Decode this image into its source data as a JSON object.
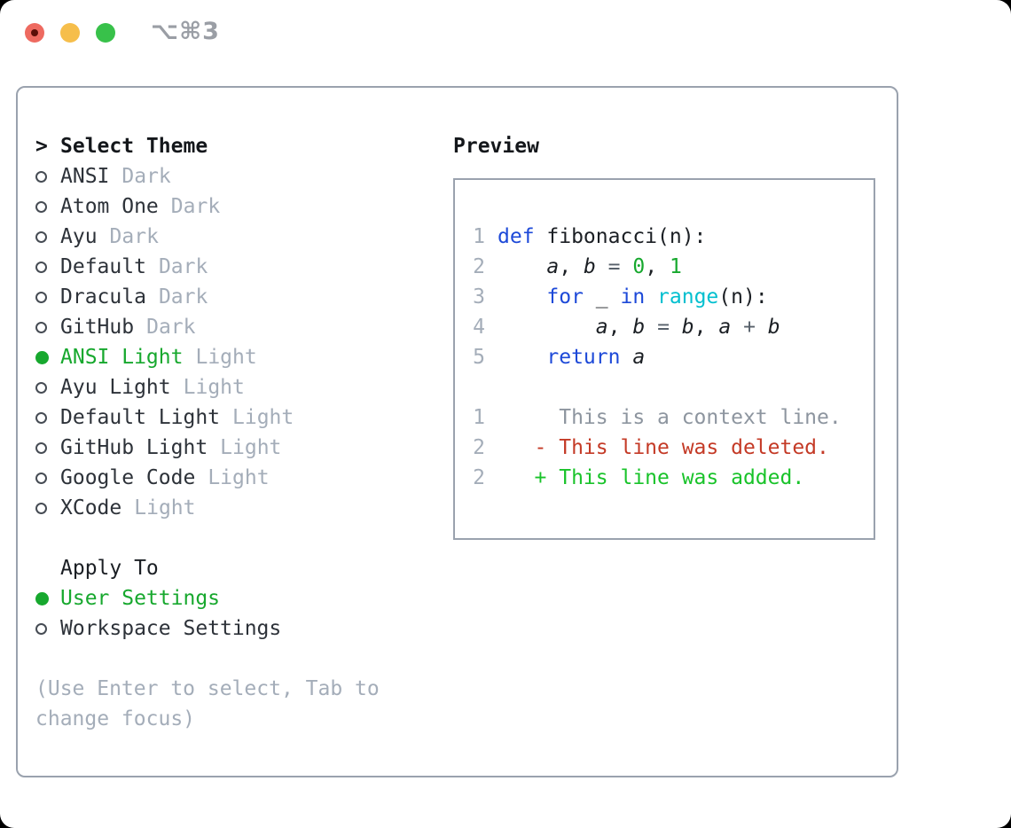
{
  "window": {
    "title": "⌥⌘3",
    "traffic_lights": [
      {
        "name": "close",
        "color": "#ee6a60",
        "dot_color": "#5c0f08"
      },
      {
        "name": "minimize",
        "color": "#f6be4b"
      },
      {
        "name": "zoom",
        "color": "#38c14a"
      }
    ]
  },
  "theme_picker": {
    "header_marker": ">",
    "header": "Select Theme",
    "items": [
      {
        "label": "ANSI",
        "tag": "Dark",
        "selected": false
      },
      {
        "label": "Atom One",
        "tag": "Dark",
        "selected": false
      },
      {
        "label": "Ayu",
        "tag": "Dark",
        "selected": false
      },
      {
        "label": "Default",
        "tag": "Dark",
        "selected": false
      },
      {
        "label": "Dracula",
        "tag": "Dark",
        "selected": false
      },
      {
        "label": "GitHub",
        "tag": "Dark",
        "selected": false
      },
      {
        "label": "ANSI Light",
        "tag": "Light",
        "selected": true
      },
      {
        "label": "Ayu Light",
        "tag": "Light",
        "selected": false
      },
      {
        "label": "Default Light",
        "tag": "Light",
        "selected": false
      },
      {
        "label": "GitHub Light",
        "tag": "Light",
        "selected": false
      },
      {
        "label": "Google Code",
        "tag": "Light",
        "selected": false
      },
      {
        "label": "XCode",
        "tag": "Light",
        "selected": false
      }
    ],
    "apply_to": {
      "header": "Apply To",
      "options": [
        {
          "label": "User Settings",
          "selected": true
        },
        {
          "label": "Workspace Settings",
          "selected": false
        }
      ]
    },
    "hint": "(Use Enter to select, Tab to change focus)"
  },
  "preview": {
    "header": "Preview",
    "lines": [
      {
        "num": "1",
        "tokens": [
          [
            "def",
            "kw"
          ],
          [
            " fibonacci(n):",
            ""
          ]
        ]
      },
      {
        "num": "2",
        "tokens": [
          [
            "    ",
            ""
          ],
          [
            "a",
            "var"
          ],
          [
            ", ",
            ""
          ],
          [
            "b",
            "var"
          ],
          [
            " ",
            ""
          ],
          [
            "=",
            "op"
          ],
          [
            " ",
            ""
          ],
          [
            "0",
            "num"
          ],
          [
            ", ",
            ""
          ],
          [
            "1",
            "num"
          ]
        ]
      },
      {
        "num": "3",
        "tokens": [
          [
            "    ",
            ""
          ],
          [
            "for",
            "kw"
          ],
          [
            " _ ",
            ""
          ],
          [
            "in",
            "kw"
          ],
          [
            " ",
            ""
          ],
          [
            "range",
            "builtin"
          ],
          [
            "(n):",
            ""
          ]
        ]
      },
      {
        "num": "4",
        "tokens": [
          [
            "        ",
            ""
          ],
          [
            "a",
            "var"
          ],
          [
            ", ",
            ""
          ],
          [
            "b",
            "var"
          ],
          [
            " ",
            ""
          ],
          [
            "=",
            "op"
          ],
          [
            " ",
            ""
          ],
          [
            "b",
            "var"
          ],
          [
            ", ",
            ""
          ],
          [
            "a",
            "var"
          ],
          [
            " ",
            ""
          ],
          [
            "+",
            "op"
          ],
          [
            " ",
            ""
          ],
          [
            "b",
            "var"
          ]
        ]
      },
      {
        "num": "5",
        "tokens": [
          [
            "    ",
            ""
          ],
          [
            "return",
            "kw"
          ],
          [
            " ",
            ""
          ],
          [
            "a",
            "var"
          ]
        ]
      },
      {
        "num": "",
        "tokens": []
      },
      {
        "num": "1",
        "tokens": [
          [
            "     This is a context line.",
            "ctx"
          ]
        ]
      },
      {
        "num": "2",
        "tokens": [
          [
            "   - This line was deleted.",
            "del"
          ]
        ]
      },
      {
        "num": "2",
        "tokens": [
          [
            "   + This line was added.",
            "add"
          ]
        ]
      }
    ]
  },
  "colors": {
    "accent_green": "#17a82e",
    "added_green": "#19c32a",
    "deleted_red": "#c43a26",
    "keyword_blue": "#1d49d8",
    "builtin_cyan": "#00bfcf",
    "number_green": "#17a82e",
    "op_gray": "#57606a",
    "muted_gray": "#a4adb9",
    "context_gray": "#8d959f",
    "border_gray": "#9aa2ae"
  }
}
